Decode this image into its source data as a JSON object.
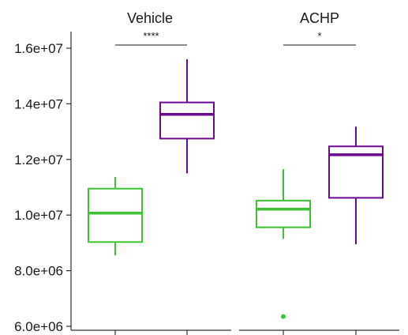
{
  "chart_data": {
    "type": "box",
    "ylim": [
      6000000,
      16000000
    ],
    "y_ticks": [
      6000000,
      8000000,
      10000000,
      12000000,
      14000000,
      16000000
    ],
    "y_tick_labels": [
      "6.0e+06",
      "8.0e+06",
      "1.0e+07",
      "1.2e+07",
      "1.4e+07",
      "1.6e+07"
    ],
    "grid": false,
    "legend": "none",
    "colors": {
      "group_a": "#3dc234",
      "group_b": "#6a0a8f"
    },
    "panels": [
      {
        "title": "Vehicle",
        "significance": "****",
        "boxes": [
          {
            "color_key": "group_a",
            "min": 8550000,
            "q1": 9030000,
            "median": 10070000,
            "q3": 10950000,
            "max": 11370000,
            "outliers": []
          },
          {
            "color_key": "group_b",
            "min": 11500000,
            "q1": 12750000,
            "median": 13620000,
            "q3": 14050000,
            "max": 15600000,
            "outliers": []
          }
        ]
      },
      {
        "title": "ACHP",
        "significance": "*",
        "boxes": [
          {
            "color_key": "group_a",
            "min": 9150000,
            "q1": 9560000,
            "median": 10210000,
            "q3": 10520000,
            "max": 11650000,
            "outliers": [
              6350000
            ]
          },
          {
            "color_key": "group_b",
            "min": 8950000,
            "q1": 10620000,
            "median": 12170000,
            "q3": 12470000,
            "max": 13180000,
            "outliers": []
          }
        ]
      }
    ]
  }
}
